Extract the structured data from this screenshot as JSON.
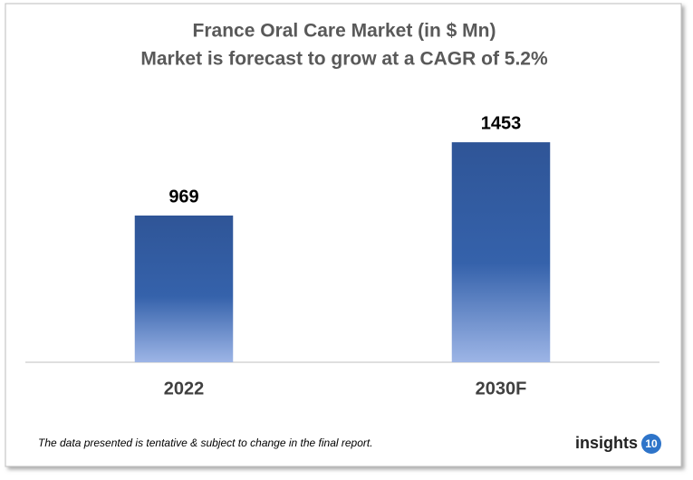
{
  "chart_data": {
    "type": "bar",
    "title": "France Oral Care Market (in $ Mn)",
    "subtitle": "Market is forecast to grow at a CAGR of 5.2%",
    "categories": [
      "2022",
      "2030F"
    ],
    "values": [
      969,
      1453
    ],
    "color": "#2f5597",
    "ylim": [
      0,
      1600
    ],
    "grid": false
  },
  "footnote": "The data presented is tentative & subject to change in the final report.",
  "logo": {
    "text": "insights",
    "badge": "10"
  }
}
